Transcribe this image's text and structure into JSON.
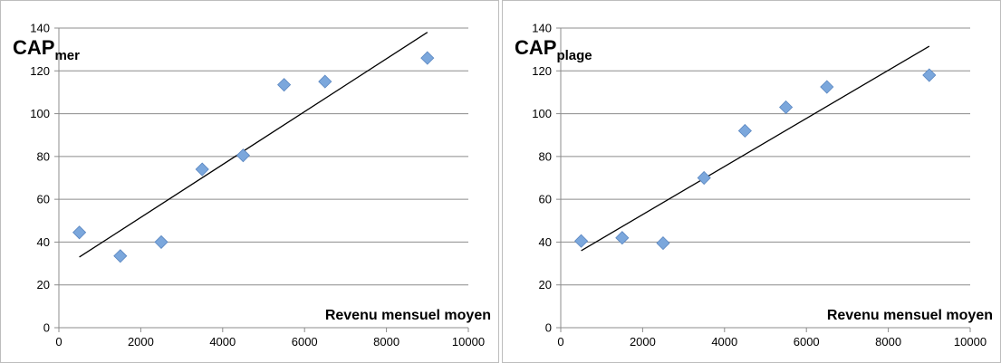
{
  "chart_data": [
    {
      "type": "scatter",
      "title_main": "CAP",
      "title_sub": "mer",
      "xlabel": "Revenu mensuel moyen",
      "ylabel": "",
      "xlim": [
        0,
        10000
      ],
      "ylim": [
        0,
        140
      ],
      "xticks": [
        0,
        2000,
        4000,
        6000,
        8000,
        10000
      ],
      "yticks": [
        0,
        20,
        40,
        60,
        80,
        100,
        120,
        140
      ],
      "grid": "horizontal",
      "marker_color": "#7BA7DC",
      "series": [
        {
          "x": [
            500,
            1500,
            2500,
            3500,
            4500,
            5500,
            6500,
            9000
          ],
          "y": [
            44.5,
            33.5,
            40,
            74,
            80.5,
            113.5,
            115,
            126
          ]
        }
      ],
      "trendline": {
        "x": [
          500,
          9000
        ],
        "y": [
          33,
          138
        ]
      }
    },
    {
      "type": "scatter",
      "title_main": "CAP",
      "title_sub": "plage",
      "xlabel": "Revenu mensuel moyen",
      "ylabel": "",
      "xlim": [
        0,
        10000
      ],
      "ylim": [
        0,
        140
      ],
      "xticks": [
        0,
        2000,
        4000,
        6000,
        8000,
        10000
      ],
      "yticks": [
        0,
        20,
        40,
        60,
        80,
        100,
        120,
        140
      ],
      "grid": "horizontal",
      "marker_color": "#7BA7DC",
      "series": [
        {
          "x": [
            500,
            1500,
            2500,
            3500,
            4500,
            5500,
            6500,
            9000
          ],
          "y": [
            40.5,
            42,
            39.5,
            70,
            92,
            103,
            112.5,
            118
          ]
        }
      ],
      "trendline": {
        "x": [
          500,
          9000
        ],
        "y": [
          36,
          131.5
        ]
      }
    }
  ]
}
